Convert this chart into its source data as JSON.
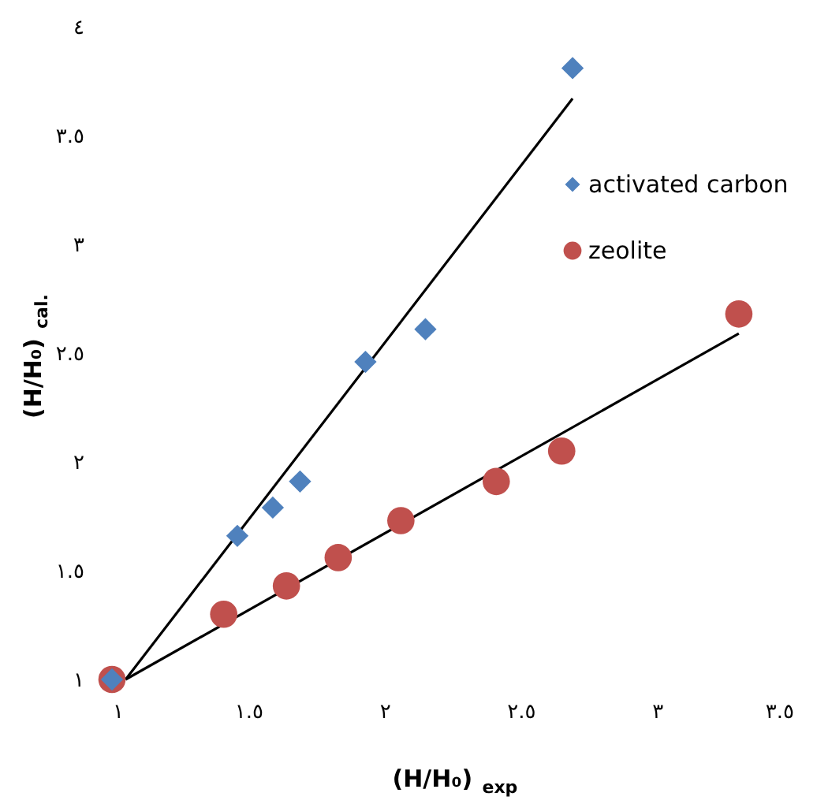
{
  "chart_data": {
    "type": "scatter",
    "xlabel": "(H/H₀)$_{exp}$",
    "ylabel": "(H/H₀)$_{cal.}$",
    "xlim": [
      1,
      3.5
    ],
    "ylim": [
      1,
      4
    ],
    "xticks": [
      {
        "value": 1,
        "label": "١"
      },
      {
        "value": 1.5,
        "label": "١.٥"
      },
      {
        "value": 2,
        "label": "٢"
      },
      {
        "value": 2.5,
        "label": "٢.٥"
      },
      {
        "value": 3,
        "label": "٣"
      },
      {
        "value": 3.5,
        "label": "٣.٥"
      }
    ],
    "yticks": [
      {
        "value": 1,
        "label": "١"
      },
      {
        "value": 1.5,
        "label": "١.٥"
      },
      {
        "value": 2,
        "label": "٢"
      },
      {
        "value": 2.5,
        "label": "٢.٥"
      },
      {
        "value": 3,
        "label": "٣"
      },
      {
        "value": 3.5,
        "label": "٣.٥"
      },
      {
        "value": 4,
        "label": "٤"
      }
    ],
    "grid": false,
    "legend": "right",
    "series": [
      {
        "name": "activated carbon",
        "color": "#4f81bd",
        "marker": "diamond",
        "x": [
          1,
          1.46,
          1.59,
          1.69,
          1.93,
          2.15,
          2.69
        ],
        "values": [
          1,
          1.66,
          1.79,
          1.91,
          2.46,
          2.61,
          3.81
        ]
      },
      {
        "name": "zeolite",
        "color": "#c0504d",
        "marker": "circle",
        "x": [
          1,
          1.41,
          1.64,
          1.83,
          2.06,
          2.41,
          2.65,
          3.3
        ],
        "values": [
          1,
          1.3,
          1.43,
          1.56,
          1.73,
          1.91,
          2.05,
          2.68
        ]
      },
      {
        "type": "line",
        "color": "#000000",
        "marker": "none",
        "x": [
          1.05,
          2.69
        ],
        "values": [
          1,
          3.67
        ]
      },
      {
        "type": "line",
        "color": "#000000",
        "marker": "none",
        "x": [
          1.05,
          3.3
        ],
        "values": [
          1,
          2.59
        ]
      }
    ]
  }
}
